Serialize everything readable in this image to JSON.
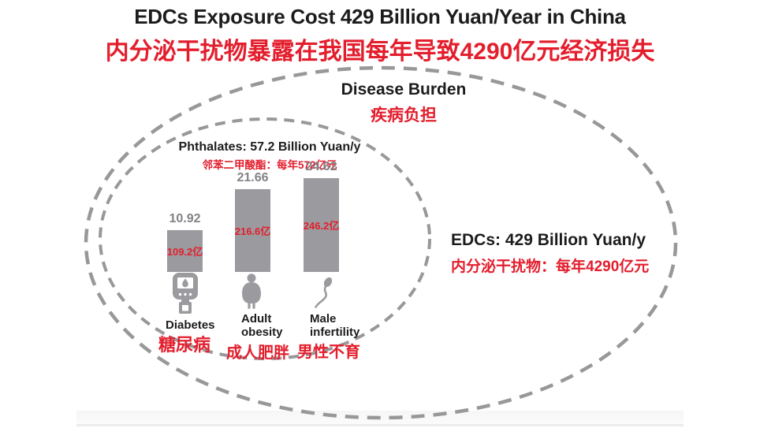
{
  "slide": {
    "title_en": "EDCs Exposure Cost 429 Billion Yuan/Year in China",
    "title_zh": "内分泌干扰物暴露在我国每年导致4290亿元经济损失"
  },
  "disease_burden": {
    "en": "Disease Burden",
    "zh": "疾病负担"
  },
  "phthalates": {
    "en": "Phthalates: 57.2 Billion Yuan/y",
    "zh": "邻苯二甲酸酯：每年572亿元"
  },
  "edcs": {
    "en": "EDCs: 429 Billion Yuan/y",
    "zh": "内分泌干扰物：每年4290亿元"
  },
  "chart_data": {
    "type": "bar",
    "title": "Phthalates: 57.2 Billion Yuan/y",
    "subtitle_zh": "邻苯二甲酸酯：每年572亿元",
    "categories": [
      "Diabetes",
      "Adult obesity",
      "Male infertility"
    ],
    "categories_zh": [
      "糖尿病",
      "成人肥胖",
      "男性不育"
    ],
    "values": [
      10.92,
      21.66,
      24.62
    ],
    "unit": "Billion Yuan/y",
    "ylim": [
      0,
      25
    ],
    "grid": false,
    "legend": "none",
    "bars": [
      {
        "value_label": "10.92",
        "inner_label_zh": "109.2亿",
        "en_line1": "Diabetes",
        "en_line2": "",
        "zh": "糖尿病",
        "icon": "glucometer-icon"
      },
      {
        "value_label": "21.66",
        "inner_label_zh": "216.6亿",
        "en_line1": "Adult",
        "en_line2": "obesity",
        "zh": "成人肥胖",
        "icon": "obese-person-icon"
      },
      {
        "value_label": "24.62",
        "inner_label_zh": "246.2亿",
        "en_line1": "Male",
        "en_line2": "infertility",
        "zh": "男性不育",
        "icon": "sperm-icon"
      }
    ]
  },
  "colors": {
    "accent_red": "#e31e2d",
    "bar_gray": "#9b9b9f",
    "value_gray": "#828287",
    "ellipse_gray": "#98989a",
    "text_black": "#1c1c1e"
  }
}
